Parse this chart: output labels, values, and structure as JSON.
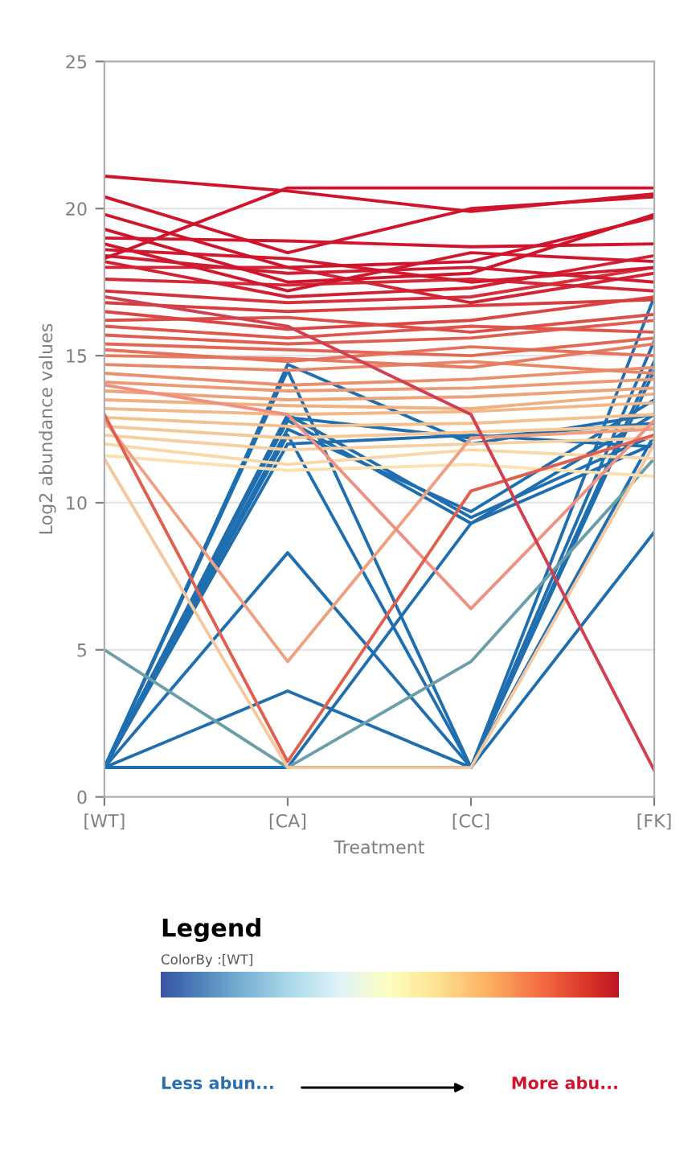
{
  "chart_data": {
    "type": "line",
    "xlabel": "Treatment",
    "ylabel": "Log2 abundance values",
    "categories": [
      "[WT]",
      "[CA]",
      "[CC]",
      "[FK]"
    ],
    "ylim": [
      0,
      25
    ],
    "yticks": [
      0,
      5,
      10,
      15,
      20,
      25
    ],
    "grid": "y",
    "marker": "none",
    "line_style": "solid",
    "annotations": [
      "Legend",
      "ColorBy :[WT]",
      "Less abun...",
      "More abu..."
    ],
    "series": [
      {
        "color": "#1f6fb0",
        "values": [
          1,
          14.7,
          12.0,
          13.0
        ]
      },
      {
        "color": "#1f6fb0",
        "values": [
          1,
          13.0,
          9.5,
          12.3
        ]
      },
      {
        "color": "#1f6fb0",
        "values": [
          1,
          12.8,
          9.3,
          12.0
        ]
      },
      {
        "color": "#1f6fb0",
        "values": [
          1,
          12.5,
          9.7,
          13.5
        ]
      },
      {
        "color": "#1f6fb0",
        "values": [
          1,
          12.9,
          12.2,
          12.7
        ]
      },
      {
        "color": "#1f6fb0",
        "values": [
          1,
          12.0,
          12.3,
          11.9
        ]
      },
      {
        "color": "#1f6fb0",
        "values": [
          1,
          8.3,
          1.0,
          14.5
        ]
      },
      {
        "color": "#1f6fb0",
        "values": [
          1,
          3.6,
          1.0,
          14.8
        ]
      },
      {
        "color": "#1f6fb0",
        "values": [
          1,
          1.0,
          9.3,
          13.0
        ]
      },
      {
        "color": "#1f6fb0",
        "values": [
          1,
          12.3,
          1.0,
          15.5
        ]
      },
      {
        "color": "#1f6fb0",
        "values": [
          1,
          1.0,
          1.0,
          9.0
        ]
      },
      {
        "color": "#1f6fb0",
        "values": [
          1,
          1.0,
          1.0,
          17.0
        ]
      },
      {
        "color": "#1f6fb0",
        "values": [
          1,
          14.5,
          1.0,
          12.3
        ]
      },
      {
        "color": "#6a9fa8",
        "values": [
          5.0,
          1.0,
          4.6,
          11.5
        ]
      },
      {
        "color": "#f5c8a0",
        "values": [
          11.5,
          1.0,
          1.0,
          12.0
        ]
      },
      {
        "color": "#fbe0b0",
        "values": [
          11.6,
          11.1,
          11.3,
          10.9
        ]
      },
      {
        "color": "#f8d8a8",
        "values": [
          12.0,
          11.3,
          11.8,
          11.5
        ]
      },
      {
        "color": "#f6d0a0",
        "values": [
          12.3,
          11.8,
          12.0,
          12.2
        ]
      },
      {
        "color": "#f5c898",
        "values": [
          12.6,
          12.2,
          12.4,
          12.6
        ]
      },
      {
        "color": "#f4c090",
        "values": [
          12.9,
          12.6,
          12.7,
          13.0
        ]
      },
      {
        "color": "#f2b888",
        "values": [
          13.2,
          13.0,
          13.1,
          13.4
        ]
      },
      {
        "color": "#f0b080",
        "values": [
          13.5,
          13.3,
          13.2,
          13.7
        ]
      },
      {
        "color": "#eea47a",
        "values": [
          13.8,
          13.5,
          13.6,
          13.9
        ]
      },
      {
        "color": "#ec9a74",
        "values": [
          14.1,
          13.8,
          13.9,
          14.2
        ]
      },
      {
        "color": "#ea906e",
        "values": [
          14.4,
          14.0,
          14.2,
          14.6
        ]
      },
      {
        "color": "#e88668",
        "values": [
          14.7,
          14.5,
          14.8,
          14.4
        ]
      },
      {
        "color": "#e67c62",
        "values": [
          15.0,
          14.9,
          14.6,
          15.4
        ]
      },
      {
        "color": "#e4725c",
        "values": [
          15.2,
          14.8,
          15.3,
          15.0
        ]
      },
      {
        "color": "#e26856",
        "values": [
          15.4,
          15.2,
          15.0,
          15.6
        ]
      },
      {
        "color": "#e05e50",
        "values": [
          15.7,
          15.4,
          15.6,
          16.2
        ]
      },
      {
        "color": "#de564c",
        "values": [
          16.0,
          15.6,
          16.0,
          15.8
        ]
      },
      {
        "color": "#dc4e48",
        "values": [
          16.2,
          16.3,
          15.8,
          16.4
        ]
      },
      {
        "color": "#da4644",
        "values": [
          16.5,
          15.9,
          16.2,
          17.0
        ]
      },
      {
        "color": "#d83e40",
        "values": [
          16.8,
          16.5,
          16.7,
          16.9
        ]
      },
      {
        "color": "#f0a080",
        "values": [
          12.8,
          4.6,
          12.2,
          12.5
        ]
      },
      {
        "color": "#f09080",
        "values": [
          14.0,
          13.0,
          6.4,
          12.8
        ]
      },
      {
        "color": "#e06050",
        "values": [
          13.0,
          1.2,
          10.4,
          12.3
        ]
      },
      {
        "color": "#d04050",
        "values": [
          17.0,
          16.0,
          13.0,
          0.9
        ]
      },
      {
        "color": "#d6303c",
        "values": [
          17.2,
          16.8,
          17.0,
          18.0
        ]
      },
      {
        "color": "#d42a38",
        "values": [
          17.6,
          17.4,
          17.6,
          17.2
        ]
      },
      {
        "color": "#d22434",
        "values": [
          18.0,
          18.0,
          16.8,
          17.8
        ]
      },
      {
        "color": "#d22032",
        "values": [
          18.2,
          17.0,
          17.3,
          18.4
        ]
      },
      {
        "color": "#d01c30",
        "values": [
          18.4,
          17.8,
          18.0,
          17.5
        ]
      },
      {
        "color": "#d01a2e",
        "values": [
          18.6,
          18.3,
          17.5,
          18.0
        ]
      },
      {
        "color": "#d0182e",
        "values": [
          18.8,
          17.2,
          18.5,
          18.2
        ]
      },
      {
        "color": "#d0162c",
        "values": [
          19.0,
          18.9,
          18.7,
          18.8
        ]
      },
      {
        "color": "#d0142c",
        "values": [
          19.3,
          17.5,
          17.8,
          19.8
        ]
      },
      {
        "color": "#d0142c",
        "values": [
          19.8,
          18.0,
          18.2,
          19.7
        ]
      },
      {
        "color": "#d0142c",
        "values": [
          20.4,
          18.5,
          20.0,
          20.4
        ]
      },
      {
        "color": "#d0142c",
        "values": [
          18.3,
          20.7,
          20.7,
          20.7
        ]
      },
      {
        "color": "#d0142c",
        "values": [
          21.1,
          20.6,
          19.9,
          20.5
        ]
      }
    ]
  }
}
